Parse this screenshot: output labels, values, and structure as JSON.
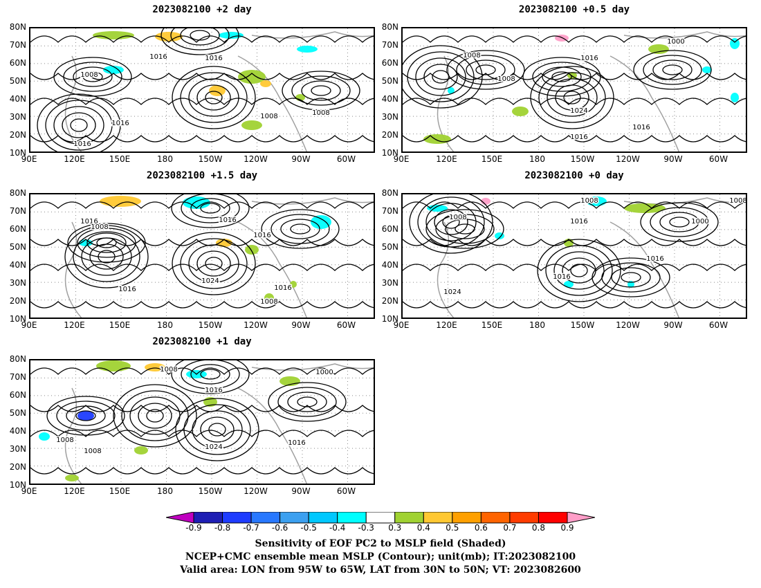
{
  "panels": [
    {
      "id": "p1",
      "title": "2023082100 +2 day",
      "contour_labels": [
        "1016",
        "1016",
        "1008",
        "1016",
        "1008",
        "1016",
        "1008"
      ]
    },
    {
      "id": "p2",
      "title": "2023082100 +0.5 day",
      "contour_labels": [
        "1000",
        "1008",
        "1016",
        "1008",
        "1024",
        "1016",
        "1016"
      ]
    },
    {
      "id": "p3",
      "title": "2023082100 +1.5 day",
      "contour_labels": [
        "1016",
        "1008",
        "1016",
        "1016",
        "1024",
        "1016",
        "1008",
        "1016"
      ]
    },
    {
      "id": "p4",
      "title": "2023082100 +0 day",
      "contour_labels": [
        "1008",
        "1008",
        "1016",
        "1016",
        "1000",
        "1016",
        "1024",
        "1008"
      ]
    },
    {
      "id": "p5",
      "title": "2023082100 +1 day",
      "contour_labels": [
        "1008",
        "1000",
        "1016",
        "1008",
        "1008",
        "1024",
        "1016"
      ]
    }
  ],
  "lat_ticks": [
    "80N",
    "70N",
    "60N",
    "50N",
    "40N",
    "30N",
    "20N",
    "10N"
  ],
  "lon_ticks": [
    "90E",
    "120E",
    "150E",
    "180",
    "150W",
    "120W",
    "90W",
    "60W"
  ],
  "colorbar": {
    "labels": [
      "-0.9",
      "-0.8",
      "-0.7",
      "-0.6",
      "-0.5",
      "-0.4",
      "-0.3",
      "0.3",
      "0.4",
      "0.5",
      "0.6",
      "0.7",
      "0.8",
      "0.9"
    ],
    "colors": [
      "#c000c0",
      "#1e1eb4",
      "#1e3cff",
      "#2878ff",
      "#3ca0f0",
      "#00c8ff",
      "#00ffff",
      "#ffffff",
      "#a0d232",
      "#ffc832",
      "#ffa000",
      "#ff6400",
      "#ff3c00",
      "#ff0000",
      "#ff9ec8"
    ]
  },
  "caption": {
    "line1": "Sensitivity of EOF PC2 to MSLP field (Shaded)",
    "line2": "NCEP+CMC ensemble mean MSLP (Contour); unit(mb); IT:2023082100",
    "line3": "Valid area: LON from 95W to 65W, LAT from 30N to 50N; VT: 2023082600"
  }
}
